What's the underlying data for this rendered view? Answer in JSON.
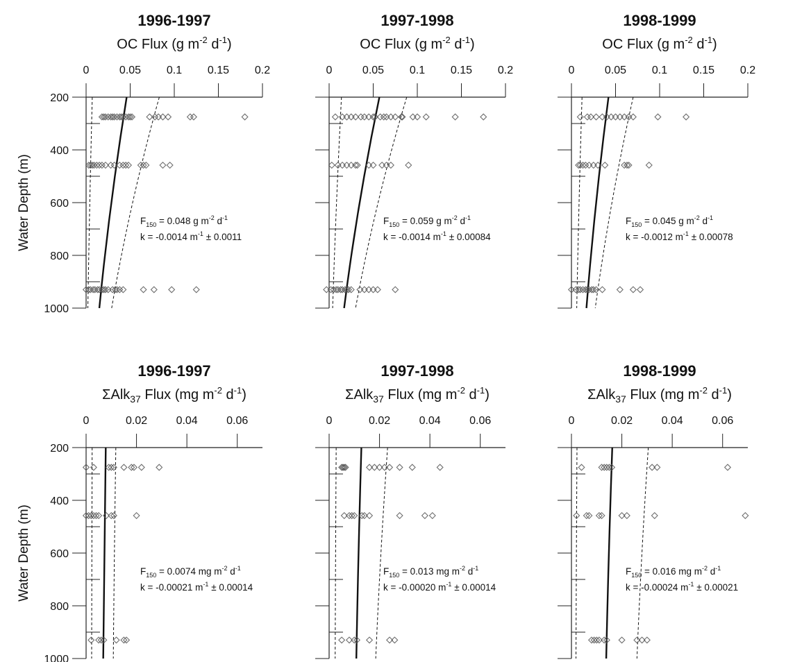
{
  "figure": {
    "ylabel": "Water Depth (m)"
  },
  "chart_data": [
    {
      "type": "scatter",
      "year": "1996-1997",
      "title": "OC Flux (g m-2 d-1)",
      "title_parts": {
        "pre": "",
        "main": "OC Flux (g m",
        "sup1": "-2",
        "mid": " d",
        "sup2": "-1",
        "post": ")"
      },
      "ylabel": "Water Depth (m)",
      "xlim": [
        0,
        0.2
      ],
      "xticks": [
        0,
        0.05,
        0.1,
        0.15,
        0.2
      ],
      "xtick_labels": [
        "0",
        "0.05",
        "0.1",
        "0.15",
        "0.2"
      ],
      "ylim": [
        200,
        1000
      ],
      "yticks": [
        200,
        400,
        600,
        800,
        1000
      ],
      "ytick_labels": [
        "200",
        "400",
        "600",
        "800",
        "1000"
      ],
      "y_axis": "inverted",
      "series": [
        {
          "depth": 275,
          "values": [
            0.018,
            0.02,
            0.022,
            0.025,
            0.028,
            0.03,
            0.032,
            0.035,
            0.038,
            0.04,
            0.042,
            0.045,
            0.048,
            0.05,
            0.052,
            0.072,
            0.078,
            0.082,
            0.087,
            0.093,
            0.118,
            0.122,
            0.18
          ]
        },
        {
          "depth": 458,
          "values": [
            0.003,
            0.005,
            0.007,
            0.009,
            0.012,
            0.015,
            0.018,
            0.022,
            0.028,
            0.032,
            0.038,
            0.042,
            0.045,
            0.048,
            0.062,
            0.065,
            0.068,
            0.087,
            0.095
          ]
        },
        {
          "depth": 930,
          "values": [
            0.0,
            0.003,
            0.005,
            0.008,
            0.01,
            0.013,
            0.015,
            0.018,
            0.02,
            0.022,
            0.025,
            0.03,
            0.033,
            0.035,
            0.038,
            0.042,
            0.065,
            0.077,
            0.097,
            0.125
          ]
        }
      ],
      "fit": {
        "central": [
          0.046,
          0.015
        ],
        "lower": [
          0.007,
          0.002
        ],
        "upper": [
          0.083,
          0.029
        ]
      },
      "annotation": {
        "f_main": "F",
        "f_sub": "150",
        "f_rest": " = 0.048 g m",
        "sup1": "-2",
        "d": " d",
        "sup2": "-1",
        "k_text": "k = -0.0014 m",
        "k_sup": "-1",
        "k_rest": " ± 0.0011"
      }
    },
    {
      "type": "scatter",
      "year": "1997-1998",
      "title": "OC Flux (g m-2 d-1)",
      "title_parts": {
        "pre": "",
        "main": "OC Flux (g m",
        "sup1": "-2",
        "mid": " d",
        "sup2": "-1",
        "post": ")"
      },
      "ylabel": "",
      "xlim": [
        0,
        0.2
      ],
      "xticks": [
        0,
        0.05,
        0.1,
        0.15,
        0.2
      ],
      "xtick_labels": [
        "0",
        "0.05",
        "0.1",
        "0.15",
        "0.2"
      ],
      "ylim": [
        200,
        1000
      ],
      "yticks": [
        200,
        400,
        600,
        800,
        1000
      ],
      "ytick_labels": [],
      "y_axis": "inverted",
      "series": [
        {
          "depth": 275,
          "values": [
            0.007,
            0.015,
            0.02,
            0.025,
            0.03,
            0.036,
            0.04,
            0.045,
            0.05,
            0.052,
            0.058,
            0.062,
            0.065,
            0.07,
            0.075,
            0.082,
            0.083,
            0.095,
            0.1,
            0.11,
            0.143,
            0.175
          ]
        },
        {
          "depth": 458,
          "values": [
            0.003,
            0.01,
            0.015,
            0.02,
            0.025,
            0.03,
            0.032,
            0.045,
            0.05,
            0.06,
            0.065,
            0.07,
            0.09
          ]
        },
        {
          "depth": 930,
          "values": [
            -0.003,
            0.002,
            0.005,
            0.008,
            0.01,
            0.013,
            0.015,
            0.018,
            0.02,
            0.022,
            0.025,
            0.035,
            0.04,
            0.045,
            0.05,
            0.055,
            0.075
          ]
        }
      ],
      "fit": {
        "central": [
          0.057,
          0.017
        ],
        "lower": [
          0.014,
          0.004
        ],
        "upper": [
          0.088,
          0.03
        ]
      },
      "annotation": {
        "f_main": "F",
        "f_sub": "150",
        "f_rest": " = 0.059 g m",
        "sup1": "-2",
        "d": " d",
        "sup2": "-1",
        "k_text": "k = -0.0014 m",
        "k_sup": "-1",
        "k_rest": " ± 0.00084"
      }
    },
    {
      "type": "scatter",
      "year": "1998-1999",
      "title": "OC Flux (g m-2 d-1)",
      "title_parts": {
        "pre": "",
        "main": "OC Flux (g m",
        "sup1": "-2",
        "mid": " d",
        "sup2": "-1",
        "post": ")"
      },
      "ylabel": "",
      "xlim": [
        0,
        0.2
      ],
      "xticks": [
        0,
        0.05,
        0.1,
        0.15,
        0.2
      ],
      "xtick_labels": [
        "0",
        "0.05",
        "0.1",
        "0.15",
        "0.2"
      ],
      "ylim": [
        200,
        1000
      ],
      "yticks": [
        200,
        400,
        600,
        800,
        1000
      ],
      "ytick_labels": [],
      "y_axis": "inverted",
      "series": [
        {
          "depth": 275,
          "values": [
            0.01,
            0.018,
            0.022,
            0.028,
            0.035,
            0.04,
            0.045,
            0.05,
            0.055,
            0.06,
            0.065,
            0.07,
            0.098,
            0.13
          ]
        },
        {
          "depth": 458,
          "values": [
            0.008,
            0.01,
            0.013,
            0.016,
            0.02,
            0.025,
            0.03,
            0.038,
            0.06,
            0.063,
            0.065,
            0.088
          ]
        },
        {
          "depth": 930,
          "values": [
            0.0,
            0.005,
            0.008,
            0.01,
            0.013,
            0.016,
            0.018,
            0.02,
            0.023,
            0.025,
            0.028,
            0.035,
            0.055,
            0.07,
            0.078
          ]
        }
      ],
      "fit": {
        "central": [
          0.042,
          0.017
        ],
        "lower": [
          0.012,
          0.006
        ],
        "upper": [
          0.07,
          0.027
        ]
      },
      "annotation": {
        "f_main": "F",
        "f_sub": "150",
        "f_rest": " = 0.045 g m",
        "sup1": "-2",
        "d": " d",
        "sup2": "-1",
        "k_text": "k = -0.0012 m",
        "k_sup": "-1",
        "k_rest": " ± 0.00078"
      }
    },
    {
      "type": "scatter",
      "year": "1996-1997",
      "title": "ΣAlk37 Flux (mg m-2 d-1)",
      "title_parts": {
        "pre": "ΣAlk",
        "pre_sub": "37",
        "main": " Flux (mg m",
        "sup1": "-2",
        "mid": " d",
        "sup2": "-1",
        "post": ")"
      },
      "ylabel": "Water Depth (m)",
      "xlim": [
        0,
        0.07
      ],
      "xticks": [
        0,
        0.02,
        0.04,
        0.06
      ],
      "xtick_labels": [
        "0",
        "0.02",
        "0.04",
        "0.06"
      ],
      "ylim": [
        200,
        1000
      ],
      "yticks": [
        200,
        400,
        600,
        800,
        1000
      ],
      "ytick_labels": [
        "200",
        "400",
        "600",
        "800",
        "1000"
      ],
      "y_axis": "inverted",
      "series": [
        {
          "depth": 275,
          "values": [
            0.0,
            0.003,
            0.009,
            0.01,
            0.011,
            0.015,
            0.018,
            0.019,
            0.022,
            0.029
          ]
        },
        {
          "depth": 458,
          "values": [
            0.0,
            0.001,
            0.002,
            0.003,
            0.004,
            0.005,
            0.008,
            0.01,
            0.011,
            0.02
          ]
        },
        {
          "depth": 930,
          "values": [
            0.002,
            0.005,
            0.006,
            0.007,
            0.012,
            0.015,
            0.016
          ]
        }
      ],
      "fit": {
        "central": [
          0.0078,
          0.0068
        ],
        "lower": [
          0.0024,
          0.0022
        ],
        "upper": [
          0.0118,
          0.0108
        ]
      },
      "annotation": {
        "f_main": "F",
        "f_sub": "150",
        "f_rest": " = 0.0074 mg m",
        "sup1": "-2",
        "d": " d",
        "sup2": "-1",
        "k_text": "k = -0.00021 m",
        "k_sup": "-1",
        "k_rest": " ± 0.00014"
      }
    },
    {
      "type": "scatter",
      "year": "1997-1998",
      "title": "ΣAlk37 Flux (mg m-2 d-1)",
      "title_parts": {
        "pre": "ΣAlk",
        "pre_sub": "37",
        "main": " Flux (mg m",
        "sup1": "-2",
        "mid": " d",
        "sup2": "-1",
        "post": ")"
      },
      "ylabel": "",
      "xlim": [
        0,
        0.07
      ],
      "xticks": [
        0,
        0.02,
        0.04,
        0.06
      ],
      "xtick_labels": [
        "0",
        "0.02",
        "0.04",
        "0.06"
      ],
      "ylim": [
        200,
        1000
      ],
      "yticks": [
        200,
        400,
        600,
        800,
        1000
      ],
      "ytick_labels": [],
      "y_axis": "inverted",
      "series": [
        {
          "depth": 275,
          "values": [
            0.005,
            0.0055,
            0.006,
            0.0065,
            0.016,
            0.018,
            0.02,
            0.022,
            0.024,
            0.028,
            0.033,
            0.044
          ]
        },
        {
          "depth": 458,
          "values": [
            0.006,
            0.008,
            0.009,
            0.01,
            0.013,
            0.014,
            0.016,
            0.028,
            0.038,
            0.041
          ]
        },
        {
          "depth": 930,
          "values": [
            0.005,
            0.008,
            0.01,
            0.011,
            0.016,
            0.024,
            0.026
          ]
        }
      ],
      "fit": {
        "central": [
          0.0128,
          0.0108
        ],
        "lower": [
          0.0028,
          0.0024
        ],
        "upper": [
          0.0232,
          0.0185
        ]
      },
      "annotation": {
        "f_main": "F",
        "f_sub": "150",
        "f_rest": " = 0.013 mg m",
        "sup1": "-2",
        "d": " d",
        "sup2": "-1",
        "k_text": "k = -0.00020 m",
        "k_sup": "-1",
        "k_rest": " ± 0.00014"
      }
    },
    {
      "type": "scatter",
      "year": "1998-1999",
      "title": "ΣAlk37 Flux (mg m-2 d-1)",
      "title_parts": {
        "pre": "ΣAlk",
        "pre_sub": "37",
        "main": " Flux (mg m",
        "sup1": "-2",
        "mid": " d",
        "sup2": "-1",
        "post": ")"
      },
      "ylabel": "",
      "xlim": [
        0,
        0.07
      ],
      "xticks": [
        0,
        0.02,
        0.04,
        0.06
      ],
      "xtick_labels": [
        "0",
        "0.02",
        "0.04",
        "0.06"
      ],
      "ylim": [
        200,
        1000
      ],
      "yticks": [
        200,
        400,
        600,
        800,
        1000
      ],
      "ytick_labels": [],
      "y_axis": "inverted",
      "series": [
        {
          "depth": 275,
          "values": [
            0.004,
            0.012,
            0.013,
            0.014,
            0.015,
            0.016,
            0.032,
            0.034,
            0.062
          ]
        },
        {
          "depth": 458,
          "values": [
            0.002,
            0.006,
            0.007,
            0.011,
            0.012,
            0.02,
            0.022,
            0.033,
            0.069
          ]
        },
        {
          "depth": 930,
          "values": [
            0.008,
            0.009,
            0.01,
            0.011,
            0.013,
            0.014,
            0.02,
            0.026,
            0.028,
            0.03
          ]
        }
      ],
      "fit": {
        "central": [
          0.0162,
          0.0138
        ],
        "lower": [
          0.0022,
          0.0018
        ],
        "upper": [
          0.0305,
          0.026
        ]
      },
      "annotation": {
        "f_main": "F",
        "f_sub": "150",
        "f_rest": " = 0.016 mg m",
        "sup1": "-2",
        "d": " d",
        "sup2": "-1",
        "k_text": "k = -0.00024 m",
        "k_sup": "-1",
        "k_rest": " ± 0.00021"
      }
    }
  ]
}
